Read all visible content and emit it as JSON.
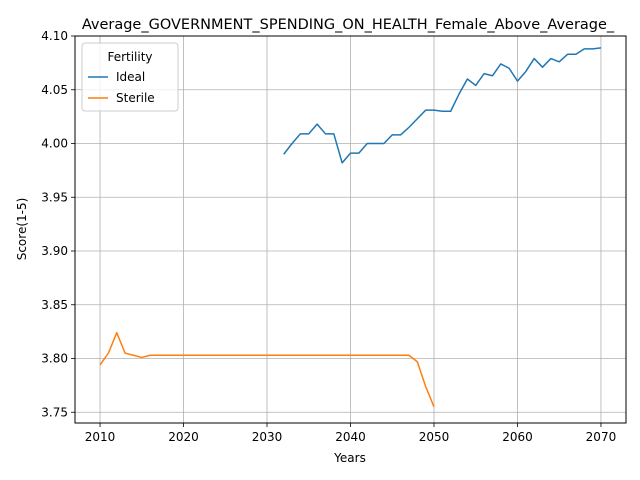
{
  "chart_data": {
    "type": "line",
    "title": "Average_GOVERNMENT_SPENDING_ON_HEALTH_Female_Above_Average_",
    "xlabel": "Years",
    "ylabel": "Score(1-5)",
    "xlim": [
      2007,
      2073
    ],
    "ylim": [
      3.74,
      4.1
    ],
    "xticks": [
      2010,
      2020,
      2030,
      2040,
      2050,
      2060,
      2070
    ],
    "yticks": [
      3.75,
      3.8,
      3.85,
      3.9,
      3.95,
      4.0,
      4.05,
      4.1
    ],
    "xtick_labels": [
      "2010",
      "2020",
      "2030",
      "2040",
      "2050",
      "2060",
      "2070"
    ],
    "ytick_labels": [
      "3.75",
      "3.80",
      "3.85",
      "3.90",
      "3.95",
      "4.00",
      "4.05",
      "4.10"
    ],
    "grid": true,
    "legend": {
      "title": "Fertility",
      "position": "upper left"
    },
    "series": [
      {
        "name": "Ideal",
        "color": "#1f77b4",
        "x": [
          2032,
          2033,
          2034,
          2035,
          2036,
          2037,
          2038,
          2039,
          2040,
          2041,
          2042,
          2043,
          2044,
          2045,
          2046,
          2047,
          2048,
          2049,
          2050,
          2051,
          2052,
          2053,
          2054,
          2055,
          2056,
          2057,
          2058,
          2059,
          2060,
          2061,
          2062,
          2063,
          2064,
          2065,
          2066,
          2067,
          2068,
          2069,
          2070
        ],
        "y": [
          3.99,
          4.0,
          4.009,
          4.009,
          4.018,
          4.009,
          4.009,
          3.982,
          3.991,
          3.991,
          4.0,
          4.0,
          4.0,
          4.008,
          4.008,
          4.015,
          4.023,
          4.031,
          4.031,
          4.03,
          4.03,
          4.046,
          4.06,
          4.054,
          4.065,
          4.063,
          4.074,
          4.07,
          4.058,
          4.067,
          4.079,
          4.071,
          4.079,
          4.076,
          4.083,
          4.083,
          4.088,
          4.088,
          4.089
        ]
      },
      {
        "name": "Sterile",
        "color": "#ff7f0e",
        "x": [
          2010,
          2011,
          2012,
          2013,
          2014,
          2015,
          2016,
          2017,
          2018,
          2019,
          2020,
          2021,
          2022,
          2023,
          2024,
          2025,
          2026,
          2027,
          2028,
          2029,
          2030,
          2031,
          2032,
          2033,
          2034,
          2035,
          2036,
          2037,
          2038,
          2039,
          2040,
          2041,
          2042,
          2043,
          2044,
          2045,
          2046,
          2047,
          2048,
          2049,
          2050
        ],
        "y": [
          3.794,
          3.805,
          3.824,
          3.805,
          3.803,
          3.801,
          3.803,
          3.803,
          3.803,
          3.803,
          3.803,
          3.803,
          3.803,
          3.803,
          3.803,
          3.803,
          3.803,
          3.803,
          3.803,
          3.803,
          3.803,
          3.803,
          3.803,
          3.803,
          3.803,
          3.803,
          3.803,
          3.803,
          3.803,
          3.803,
          3.803,
          3.803,
          3.803,
          3.803,
          3.803,
          3.803,
          3.803,
          3.803,
          3.797,
          3.774,
          3.755
        ]
      }
    ]
  }
}
